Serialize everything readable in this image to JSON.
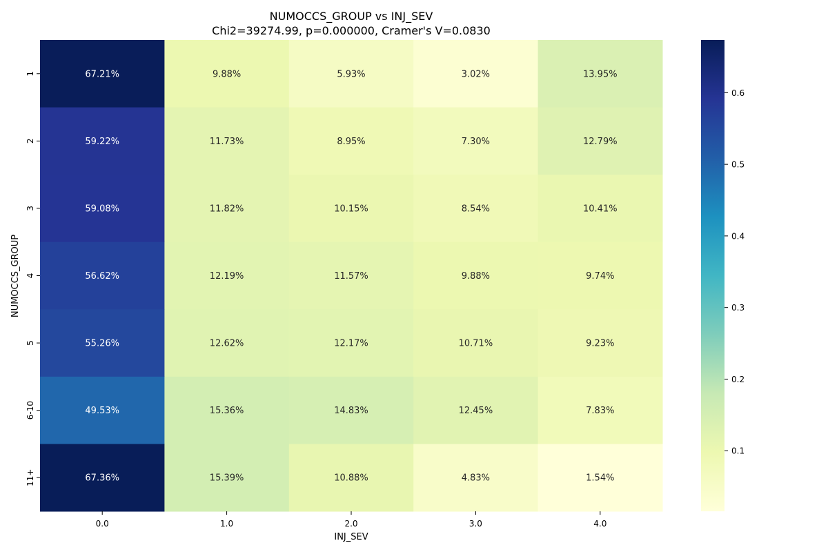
{
  "chart_data": {
    "type": "heatmap",
    "title": "NUMOCCS_GROUP vs INJ_SEV",
    "subtitle": "Chi2=39274.99, p=0.000000, Cramer's V=0.0830",
    "xlabel": "INJ_SEV",
    "ylabel": "NUMOCCS_GROUP",
    "x_categories": [
      "0.0",
      "1.0",
      "2.0",
      "3.0",
      "4.0"
    ],
    "y_categories": [
      "1",
      "2",
      "3",
      "4",
      "5",
      "6-10",
      "11+"
    ],
    "values": [
      [
        0.6721,
        0.0988,
        0.0593,
        0.0302,
        0.1395
      ],
      [
        0.5922,
        0.1173,
        0.0895,
        0.073,
        0.1279
      ],
      [
        0.5908,
        0.1182,
        0.1015,
        0.0854,
        0.1041
      ],
      [
        0.5662,
        0.1219,
        0.1157,
        0.0988,
        0.0974
      ],
      [
        0.5526,
        0.1262,
        0.1217,
        0.1071,
        0.0923
      ],
      [
        0.4953,
        0.1536,
        0.1483,
        0.1245,
        0.0783
      ],
      [
        0.6736,
        0.1539,
        0.1088,
        0.0483,
        0.0154
      ]
    ],
    "cell_labels": [
      [
        "67.21%",
        "9.88%",
        "5.93%",
        "3.02%",
        "13.95%"
      ],
      [
        "59.22%",
        "11.73%",
        "8.95%",
        "7.30%",
        "12.79%"
      ],
      [
        "59.08%",
        "11.82%",
        "10.15%",
        "8.54%",
        "10.41%"
      ],
      [
        "56.62%",
        "12.19%",
        "11.57%",
        "9.88%",
        "9.74%"
      ],
      [
        "55.26%",
        "12.62%",
        "12.17%",
        "10.71%",
        "9.23%"
      ],
      [
        "49.53%",
        "15.36%",
        "14.83%",
        "12.45%",
        "7.83%"
      ],
      [
        "67.36%",
        "15.39%",
        "10.88%",
        "4.83%",
        "1.54%"
      ]
    ],
    "colormap": "YlGnBu",
    "color_range": [
      0.0154,
      0.6736
    ],
    "colorbar_ticks": [
      "0.1",
      "0.2",
      "0.3",
      "0.4",
      "0.5",
      "0.6"
    ],
    "colorbar_tick_values": [
      0.1,
      0.2,
      0.3,
      0.4,
      0.5,
      0.6
    ],
    "legend_placement": "right",
    "grid": false
  }
}
